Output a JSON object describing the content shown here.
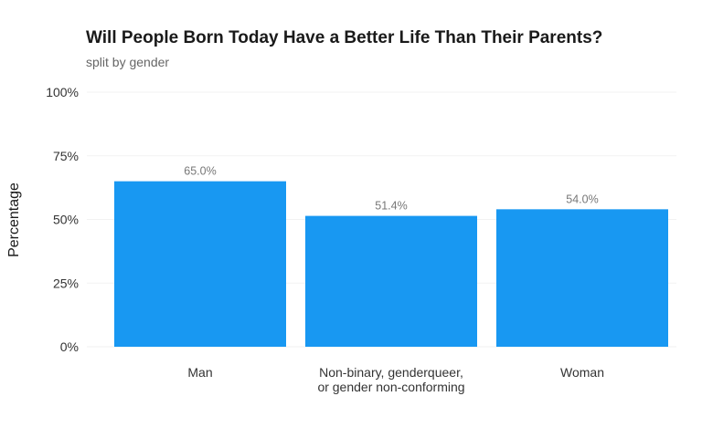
{
  "chart_data": {
    "type": "bar",
    "title": "Will People Born Today Have a Better Life Than Their Parents?",
    "subtitle": "split by gender",
    "xlabel": "",
    "ylabel": "Percentage",
    "categories": [
      [
        "Man"
      ],
      [
        "Non-binary, genderqueer,",
        "or gender non-conforming"
      ],
      [
        "Woman"
      ]
    ],
    "values": [
      65.0,
      51.4,
      54.0
    ],
    "data_labels": [
      "65.0%",
      "51.4%",
      "54.0%"
    ],
    "ylim": [
      0,
      100
    ],
    "y_ticks": [
      0,
      25,
      50,
      75,
      100
    ],
    "y_tick_labels": [
      "0%",
      "25%",
      "50%",
      "75%",
      "100%"
    ],
    "grid": true,
    "legend": "none",
    "bar_color": "#1898F2",
    "grid_color": "#f2f2f2"
  }
}
